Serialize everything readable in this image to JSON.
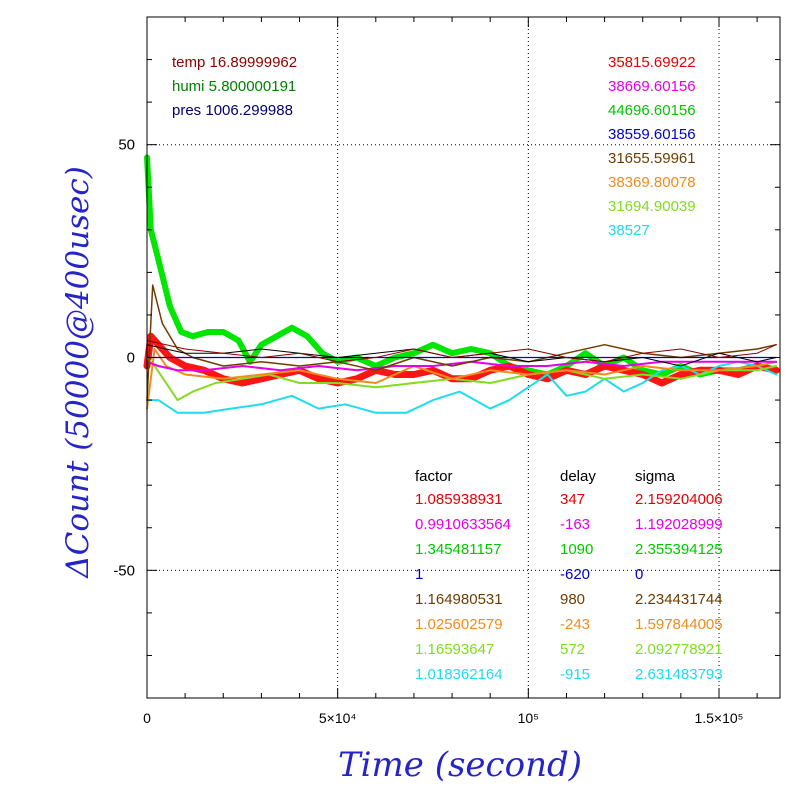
{
  "chart_data": {
    "type": "line",
    "xlabel": "Time (second)",
    "ylabel": "ΔCount (50000@400usec)",
    "xlim": [
      0,
      166000
    ],
    "ylim": [
      -80,
      80
    ],
    "grid": "dotted, major ticks",
    "x_ticks": [
      {
        "value": 0,
        "label": "0"
      },
      {
        "value": 50000,
        "label": "5×10⁴"
      },
      {
        "value": 100000,
        "label": "10⁵"
      },
      {
        "value": 150000,
        "label": "1.5×10⁵"
      }
    ],
    "y_ticks": [
      {
        "value": 50,
        "label": "50"
      },
      {
        "value": 0,
        "label": "0"
      },
      {
        "value": -50,
        "label": "-50"
      }
    ],
    "env": [
      {
        "text": "temp 16.89999962",
        "color": "#8b0000"
      },
      {
        "text": "humi 5.800000191",
        "color": "#008000"
      },
      {
        "text": "pres 1006.299988",
        "color": "#00006e"
      }
    ],
    "avg_values": [
      {
        "text": "35815.69922",
        "color": "#e60000"
      },
      {
        "text": "38669.60156",
        "color": "#e600e6"
      },
      {
        "text": "44696.60156",
        "color": "#00c800"
      },
      {
        "text": "38559.60156",
        "color": "#0000c8"
      },
      {
        "text": "31655.59961",
        "color": "#6e3c00"
      },
      {
        "text": "38369.80078",
        "color": "#f08c1e"
      },
      {
        "text": "31694.90039",
        "color": "#82dc1e"
      },
      {
        "text": "38527",
        "color": "#1edcf0"
      }
    ],
    "table_headers": [
      "factor",
      "delay",
      "sigma"
    ],
    "table_rows": [
      {
        "factor": "1.085938931",
        "delay": "347",
        "sigma": "2.159204006",
        "color": "#e60000"
      },
      {
        "factor": "0.9910633564",
        "delay": "-163",
        "sigma": "1.192028999",
        "color": "#e600e6"
      },
      {
        "factor": "1.345481157",
        "delay": "1090",
        "sigma": "2.355394125",
        "color": "#00c800"
      },
      {
        "factor": "1",
        "delay": "-620",
        "sigma": "0",
        "color": "#0000c8"
      },
      {
        "factor": "1.164980531",
        "delay": "980",
        "sigma": "2.234431744",
        "color": "#6e3c00"
      },
      {
        "factor": "1.025602579",
        "delay": "-243",
        "sigma": "1.597844005",
        "color": "#f08c1e"
      },
      {
        "factor": "1.16593647",
        "delay": "572",
        "sigma": "2.092778921",
        "color": "#82dc1e"
      },
      {
        "factor": "1.018362164",
        "delay": "-915",
        "sigma": "2.631483793",
        "color": "#1edcf0"
      }
    ],
    "series": [
      {
        "color": "#00e600",
        "width": 6,
        "x": [
          0,
          1000,
          3000,
          6000,
          9000,
          12000,
          16000,
          20000,
          24000,
          27000,
          30000,
          34000,
          38000,
          42000,
          46000,
          50000,
          55000,
          60000,
          65000,
          70000,
          75000,
          80000,
          85000,
          90000,
          95000,
          100000,
          105000,
          110000,
          115000,
          120000,
          125000,
          130000,
          135000,
          140000,
          145000,
          150000,
          155000,
          160000,
          165000
        ],
        "y": [
          47,
          30,
          23,
          12,
          6,
          5,
          6,
          6,
          4,
          -1,
          3,
          5,
          7,
          5,
          1,
          -1,
          0,
          -2,
          0,
          1,
          3,
          1,
          2,
          1,
          -2,
          -3,
          -4,
          -2,
          1,
          -2,
          0,
          -3,
          -4,
          -2,
          -4,
          -3,
          -3,
          -2,
          -3
        ]
      },
      {
        "color": "#ff1414",
        "width": 7,
        "x": [
          0,
          1000,
          3000,
          6000,
          10000,
          15000,
          20000,
          25000,
          30000,
          35000,
          40000,
          45000,
          50000,
          55000,
          60000,
          65000,
          70000,
          75000,
          80000,
          85000,
          90000,
          95000,
          100000,
          105000,
          110000,
          115000,
          120000,
          125000,
          130000,
          135000,
          140000,
          145000,
          150000,
          155000,
          160000,
          165000
        ],
        "y": [
          -2,
          5,
          3,
          0,
          -2,
          -3,
          -5,
          -6,
          -5,
          -4,
          -3,
          -5,
          -6,
          -5,
          -3,
          -4,
          -4,
          -3,
          -5,
          -5,
          -3,
          -2,
          -4,
          -5,
          -3,
          -4,
          -2,
          -3,
          -4,
          -6,
          -4,
          -3,
          -3,
          -4,
          -2,
          -3
        ]
      },
      {
        "color": "#1edcf0",
        "width": 2,
        "x": [
          0,
          3000,
          8000,
          15000,
          22000,
          30000,
          38000,
          45000,
          52000,
          60000,
          68000,
          75000,
          82000,
          90000,
          95000,
          100000,
          105000,
          110000,
          115000,
          120000,
          125000,
          130000,
          135000,
          140000,
          145000,
          150000,
          155000,
          160000,
          165000
        ],
        "y": [
          -10,
          -10,
          -13,
          -13,
          -12,
          -11,
          -9,
          -12,
          -11,
          -13,
          -13,
          -10,
          -8,
          -12,
          -10,
          -7,
          -4,
          -9,
          -8,
          -5,
          -8,
          -6,
          -3,
          -2,
          -4,
          -2,
          -1,
          -2,
          -4
        ]
      },
      {
        "color": "#82dc1e",
        "width": 2,
        "x": [
          0,
          2000,
          5000,
          8000,
          12000,
          18000,
          25000,
          32000,
          40000,
          50000,
          60000,
          70000,
          80000,
          90000,
          100000,
          110000,
          120000,
          130000,
          140000,
          150000,
          160000,
          165000
        ],
        "y": [
          0,
          -2,
          -6,
          -10,
          -8,
          -6,
          -5,
          -4,
          -6,
          -6,
          -7,
          -6,
          -5,
          -6,
          -4,
          -3,
          -5,
          -4,
          -5,
          -3,
          -3,
          -2
        ]
      },
      {
        "color": "#f08c1e",
        "width": 2,
        "x": [
          0,
          2000,
          5000,
          10000,
          20000,
          30000,
          40000,
          50000,
          60000,
          70000,
          80000,
          90000,
          100000,
          110000,
          120000,
          130000,
          140000,
          150000,
          160000,
          165000
        ],
        "y": [
          -12,
          2,
          -2,
          -4,
          -5,
          -4,
          -3,
          -5,
          -6,
          -2,
          -5,
          -3,
          -4,
          -3,
          -4,
          -2,
          -3,
          -3,
          -2,
          -1
        ]
      },
      {
        "color": "#e600e6",
        "width": 2,
        "x": [
          0,
          3000,
          8000,
          15000,
          25000,
          35000,
          45000,
          55000,
          65000,
          75000,
          85000,
          95000,
          105000,
          115000,
          125000,
          135000,
          145000,
          155000,
          165000
        ],
        "y": [
          -1,
          -2,
          -3,
          -3,
          -2,
          -3,
          -2,
          -3,
          -2,
          -2,
          -1,
          -2,
          -2,
          -1,
          -2,
          -1,
          -1,
          -1,
          -1
        ]
      },
      {
        "color": "#6e3c00",
        "width": 1.5,
        "x": [
          0,
          1500,
          4000,
          8000,
          12000,
          20000,
          30000,
          40000,
          50000,
          60000,
          70000,
          80000,
          90000,
          100000,
          110000,
          120000,
          130000,
          140000,
          150000,
          160000,
          165000
        ],
        "y": [
          -10,
          17,
          8,
          2,
          0,
          -2,
          -1,
          -2,
          -1,
          -3,
          0,
          -2,
          0,
          -1,
          1,
          3,
          1,
          0,
          1,
          2,
          3
        ]
      },
      {
        "color": "#0000c8",
        "width": 1.2,
        "x": [
          0,
          20000,
          40000,
          60000,
          80000,
          100000,
          120000,
          140000,
          160000,
          165000
        ],
        "y": [
          0,
          0,
          0,
          0,
          0,
          0,
          0,
          0,
          0,
          0
        ]
      },
      {
        "color": "#000000",
        "width": 1,
        "x": [
          0,
          5000,
          10000,
          20000,
          30000,
          40000,
          50000,
          60000,
          70000,
          80000,
          90000,
          100000,
          110000,
          120000,
          130000,
          140000,
          150000,
          160000,
          165000
        ],
        "y": [
          3,
          2,
          1,
          1,
          2,
          1,
          0,
          1,
          2,
          0,
          1,
          -1,
          0,
          -1,
          0,
          -2,
          1,
          -1,
          0
        ]
      },
      {
        "color": "#8b0000",
        "width": 1,
        "x": [
          0,
          5000,
          10000,
          20000,
          30000,
          40000,
          50000,
          60000,
          70000,
          80000,
          90000,
          100000,
          110000,
          120000,
          130000,
          140000,
          150000,
          160000,
          165000
        ],
        "y": [
          4,
          3,
          2,
          1,
          0,
          1,
          -1,
          0,
          2,
          0,
          1,
          2,
          0,
          -1,
          1,
          2,
          0,
          1,
          3
        ]
      }
    ]
  }
}
